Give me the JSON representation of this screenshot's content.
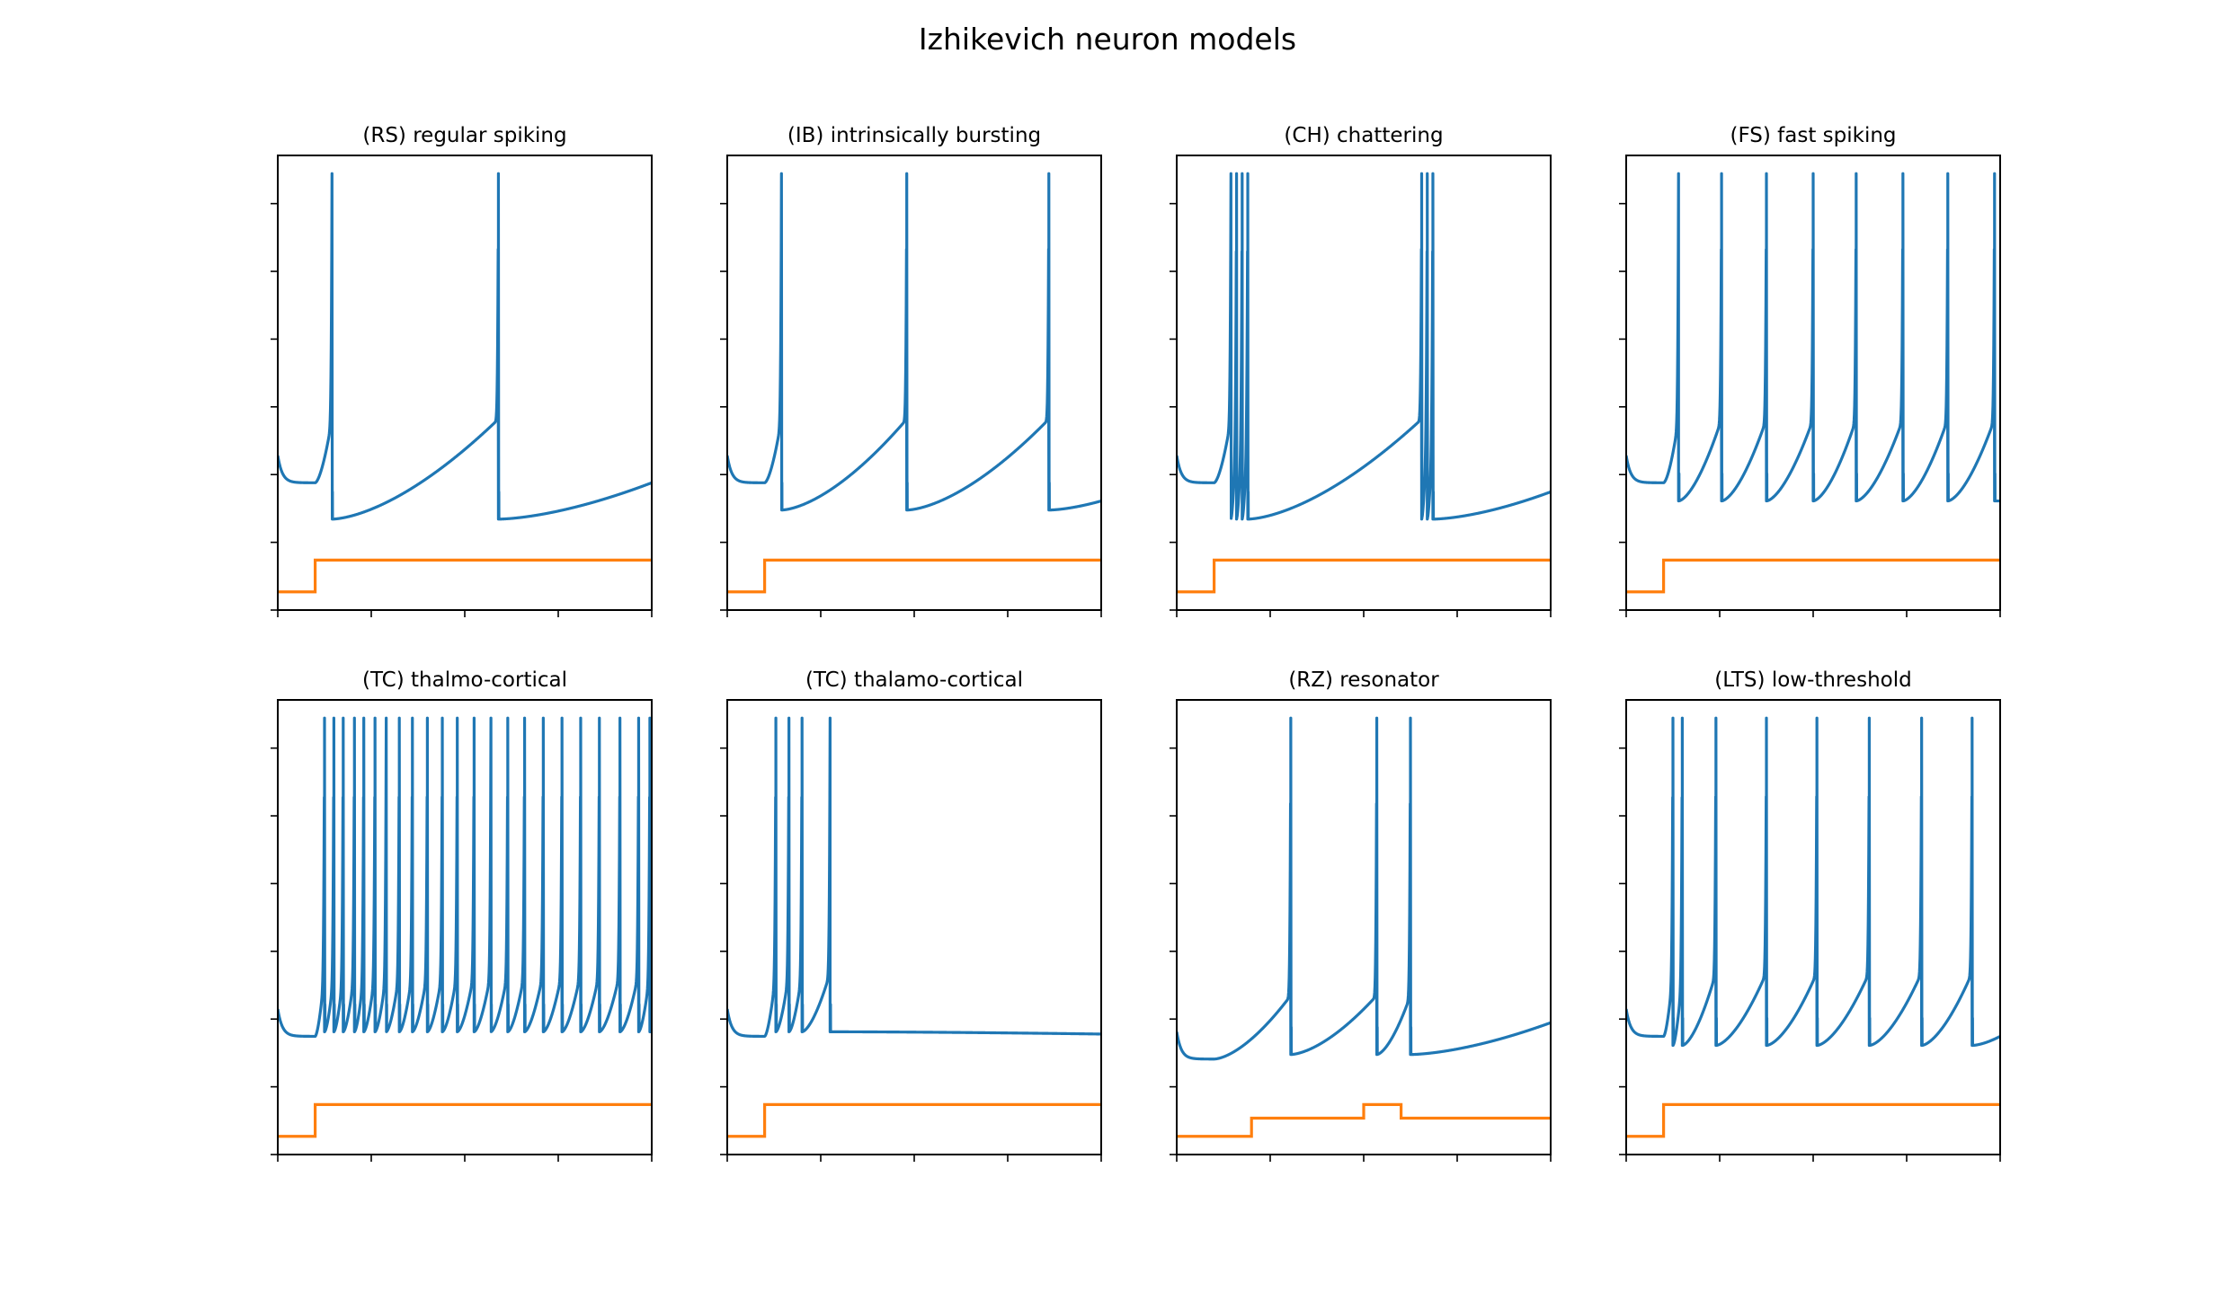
{
  "figure": {
    "title": "Izhikevich neuron models"
  },
  "colors": {
    "voltage": "#1f77b4",
    "current": "#ff7f0e",
    "axes": "#000000",
    "background": "#ffffff"
  },
  "chart_data": [
    {
      "type": "line",
      "title": "(RS) regular spiking",
      "xlabel": "",
      "ylabel": "",
      "tick_labels_shown": false,
      "xlim": [
        0,
        100
      ],
      "ylim": [
        0,
        100
      ],
      "x_ticks": [
        0,
        25,
        50,
        75,
        100
      ],
      "y_ticks": [
        0,
        14.9,
        29.8,
        44.7,
        59.6,
        74.5,
        89.4
      ],
      "grid": false,
      "voltage": {
        "rest": 28,
        "after_spike_reset": 20,
        "spike_peak": 96,
        "spike_times": [
          14.5,
          59
        ],
        "end_level": 28
      },
      "current_step": {
        "low": 4,
        "high": 11,
        "steps": [
          [
            0,
            4
          ],
          [
            10,
            11
          ]
        ]
      }
    },
    {
      "type": "line",
      "title": "(IB) intrinsically bursting",
      "xlabel": "",
      "ylabel": "",
      "tick_labels_shown": false,
      "xlim": [
        0,
        100
      ],
      "ylim": [
        0,
        100
      ],
      "x_ticks": [
        0,
        25,
        50,
        75,
        100
      ],
      "y_ticks": [
        0,
        14.9,
        29.8,
        44.7,
        59.6,
        74.5,
        89.4
      ],
      "grid": false,
      "voltage": {
        "rest": 28,
        "after_spike_reset": 22,
        "spike_peak": 96,
        "spike_times": [
          14.5,
          48,
          86
        ],
        "end_level": 24
      },
      "current_step": {
        "low": 4,
        "high": 11,
        "steps": [
          [
            0,
            4
          ],
          [
            10,
            11
          ]
        ]
      }
    },
    {
      "type": "line",
      "title": "(CH) chattering",
      "xlabel": "",
      "ylabel": "",
      "tick_labels_shown": false,
      "xlim": [
        0,
        100
      ],
      "ylim": [
        0,
        100
      ],
      "x_ticks": [
        0,
        25,
        50,
        75,
        100
      ],
      "y_ticks": [
        0,
        14.9,
        29.8,
        44.7,
        59.6,
        74.5,
        89.4
      ],
      "grid": false,
      "voltage": {
        "rest": 28,
        "after_spike_reset": 20,
        "spike_peak": 96,
        "spike_times": [
          14.5,
          16,
          17.5,
          19,
          65.5,
          67,
          68.5
        ],
        "end_level": 26
      },
      "current_step": {
        "low": 4,
        "high": 11,
        "steps": [
          [
            0,
            4
          ],
          [
            10,
            11
          ]
        ]
      }
    },
    {
      "type": "line",
      "title": "(FS) fast spiking",
      "xlabel": "",
      "ylabel": "",
      "tick_labels_shown": false,
      "xlim": [
        0,
        100
      ],
      "ylim": [
        0,
        100
      ],
      "x_ticks": [
        0,
        25,
        50,
        75,
        100
      ],
      "y_ticks": [
        0,
        14.9,
        29.8,
        44.7,
        59.6,
        74.5,
        89.4
      ],
      "grid": false,
      "voltage": {
        "rest": 28,
        "after_spike_reset": 24,
        "spike_peak": 96,
        "spike_times": [
          14,
          25.5,
          37.5,
          50,
          61.5,
          74,
          86,
          98.5
        ],
        "end_level": 24
      },
      "current_step": {
        "low": 4,
        "high": 11,
        "steps": [
          [
            0,
            4
          ],
          [
            10,
            11
          ]
        ]
      }
    },
    {
      "type": "line",
      "title": "(TC) thalmo-cortical",
      "xlabel": "",
      "ylabel": "",
      "tick_labels_shown": false,
      "xlim": [
        0,
        100
      ],
      "ylim": [
        0,
        100
      ],
      "x_ticks": [
        0,
        25,
        50,
        75,
        100
      ],
      "y_ticks": [
        0,
        14.9,
        29.8,
        44.7,
        59.6,
        74.5,
        89.4
      ],
      "grid": false,
      "voltage": {
        "rest": 26,
        "after_spike_reset": 27,
        "spike_peak": 96,
        "spike_times": [
          12.5,
          15,
          17.5,
          20.5,
          23,
          26,
          29,
          32.5,
          36,
          40,
          44,
          48,
          52.5,
          57,
          61.5,
          66,
          71,
          76,
          81,
          86,
          91.5,
          96.5,
          99.5
        ],
        "end_level": 27
      },
      "current_step": {
        "low": 4,
        "high": 11,
        "steps": [
          [
            0,
            4
          ],
          [
            10,
            11
          ]
        ]
      }
    },
    {
      "type": "line",
      "title": "(TC) thalamo-cortical",
      "xlabel": "",
      "ylabel": "",
      "tick_labels_shown": false,
      "xlim": [
        0,
        100
      ],
      "ylim": [
        0,
        100
      ],
      "x_ticks": [
        0,
        25,
        50,
        75,
        100
      ],
      "y_ticks": [
        0,
        14.9,
        29.8,
        44.7,
        59.6,
        74.5,
        89.4
      ],
      "grid": false,
      "voltage": {
        "rest": 26,
        "after_spike_reset": 27,
        "spike_peak": 96,
        "spike_times": [
          13,
          16.5,
          20,
          27.5
        ],
        "end_level": 26.5
      },
      "current_step": {
        "low": 4,
        "high": 11,
        "steps": [
          [
            0,
            4
          ],
          [
            10,
            11
          ]
        ]
      }
    },
    {
      "type": "line",
      "title": "(RZ) resonator",
      "xlabel": "",
      "ylabel": "",
      "tick_labels_shown": false,
      "xlim": [
        0,
        100
      ],
      "ylim": [
        0,
        100
      ],
      "x_ticks": [
        0,
        25,
        50,
        75,
        100
      ],
      "y_ticks": [
        0,
        14.9,
        29.8,
        44.7,
        59.6,
        74.5,
        89.4
      ],
      "grid": false,
      "voltage": {
        "rest": 21,
        "after_spike_reset": 22,
        "spike_peak": 96,
        "spike_times": [
          30.5,
          53.5,
          62.5
        ],
        "end_level": 29
      },
      "current_step": {
        "low": 4,
        "high": 8,
        "steps": [
          [
            0,
            4
          ],
          [
            20,
            8
          ],
          [
            50,
            11
          ],
          [
            60,
            8
          ]
        ]
      }
    },
    {
      "type": "line",
      "title": "(LTS) low-threshold",
      "xlabel": "",
      "ylabel": "",
      "tick_labels_shown": false,
      "xlim": [
        0,
        100
      ],
      "ylim": [
        0,
        100
      ],
      "x_ticks": [
        0,
        25,
        50,
        75,
        100
      ],
      "y_ticks": [
        0,
        14.9,
        29.8,
        44.7,
        59.6,
        74.5,
        89.4
      ],
      "grid": false,
      "voltage": {
        "rest": 26,
        "after_spike_reset": 24,
        "spike_peak": 96,
        "spike_times": [
          12.5,
          15,
          24,
          37.5,
          51,
          65,
          79,
          92.5
        ],
        "end_level": 26
      },
      "current_step": {
        "low": 4,
        "high": 11,
        "steps": [
          [
            0,
            4
          ],
          [
            10,
            11
          ]
        ]
      }
    }
  ]
}
